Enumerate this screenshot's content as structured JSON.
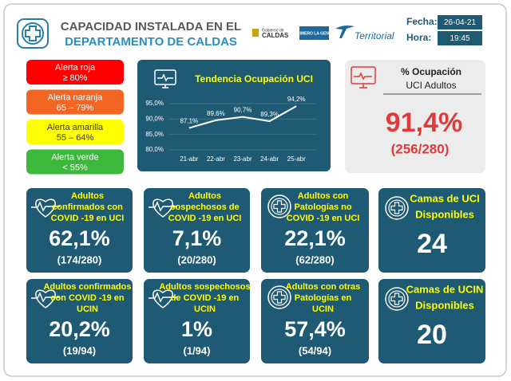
{
  "header": {
    "title_line1": "CAPACIDAD INSTALADA EN EL",
    "title_line2": "DEPARTAMENTO DE CALDAS",
    "logo_gob_line1": "Gobierno de",
    "logo_gob_line2": "CALDAS",
    "logo_primero": "PRIMERO LA GENTE",
    "logo_territorial": "Territorial",
    "fecha_label": "Fecha:",
    "fecha": "26-04-21",
    "hora_label": "Hora:",
    "hora": "19:45"
  },
  "alerts": [
    {
      "label": "Alerta roja",
      "range": "≥ 80%",
      "color": "#ff0000"
    },
    {
      "label": "Alerta naranja",
      "range": "65 – 79%",
      "color": "#f26522"
    },
    {
      "label": "Alerta amarilla",
      "range": "55 – 64%",
      "color": "#ffff00"
    },
    {
      "label": "Alerta verde",
      "range": "< 55%",
      "color": "#3cb83c"
    }
  ],
  "chart_data": {
    "type": "line",
    "title": "Tendencia Ocupación UCI",
    "categories": [
      "21-abr",
      "22-abr",
      "23-abr",
      "24-abr",
      "25-abr"
    ],
    "values": [
      87.1,
      89.6,
      90.7,
      89.3,
      94.2
    ],
    "value_labels": [
      "87,1%",
      "89,6%",
      "90,7%",
      "89,3%",
      "94,2%"
    ],
    "ylim": [
      80,
      95
    ],
    "yticks": [
      {
        "value": 80,
        "label": "80,0%"
      },
      {
        "value": 85,
        "label": "85,0%"
      },
      {
        "value": 90,
        "label": "90,0%"
      },
      {
        "value": 95,
        "label": "95,0%"
      }
    ],
    "color": "#ffffff"
  },
  "occupancy": {
    "title_line1": "% Ocupación",
    "title_line2": "UCI Adultos",
    "value": "91,4%",
    "detail": "(256/280)"
  },
  "cards": [
    {
      "title": [
        "Adultos",
        "confirmados con",
        "COVID -19 en UCI"
      ],
      "value": "62,1%",
      "detail": "(174/280)"
    },
    {
      "title": [
        "Adultos",
        "sospechosos de",
        "COVID -19 en UCI"
      ],
      "value": "7,1%",
      "detail": "(20/280)"
    },
    {
      "title": [
        "Adultos con",
        "Patologías no",
        "COVID -19 en UCI"
      ],
      "value": "22,1%",
      "detail": "(62/280)"
    },
    {
      "title": [
        "Camas de UCI",
        "Disponibles"
      ],
      "value": "24"
    },
    {
      "title": [
        "Adultos confirmados",
        "con COVID -19 en",
        "UCIN"
      ],
      "value": "20,2%",
      "detail": "(19/94)"
    },
    {
      "title": [
        "Adultos sospechosos",
        "de COVID -19 en",
        "UCIN"
      ],
      "value": "1%",
      "detail": "(1/94)"
    },
    {
      "title": [
        "Adultos con otras",
        "Patologías en",
        "UCIN"
      ],
      "value": "57,4%",
      "detail": "(54/94)"
    },
    {
      "title": [
        "Camas de UCIN",
        "Disponibles"
      ],
      "value": "20"
    }
  ]
}
